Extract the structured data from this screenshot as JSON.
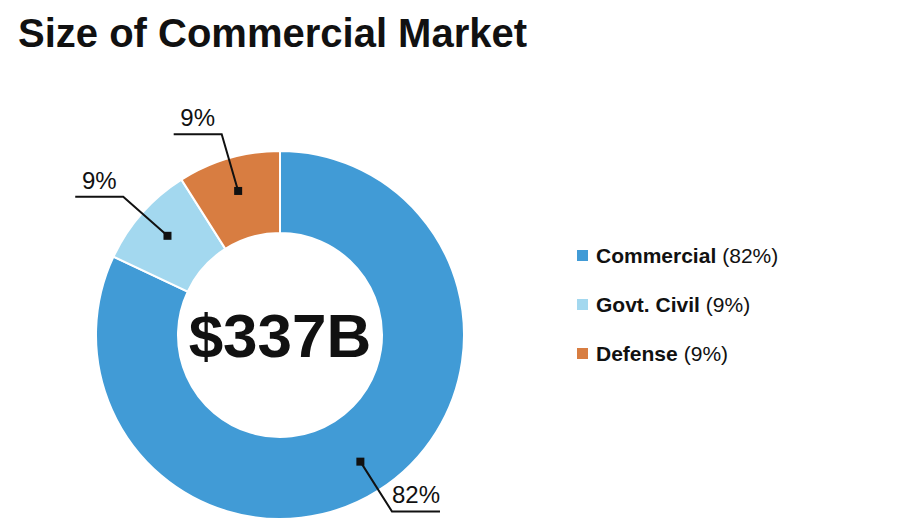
{
  "chart_data": {
    "type": "donut",
    "title": "Size of Commercial Market",
    "center_label": "$337B",
    "categories": [
      "Commercial",
      "Govt. Civil",
      "Defense"
    ],
    "values": [
      82,
      9,
      9
    ],
    "value_labels": [
      "82%",
      "9%",
      "9%"
    ],
    "legend_value_labels": [
      "(82%)",
      "(9%)",
      "(9%)"
    ],
    "colors": [
      "#419bd6",
      "#a3d8ef",
      "#d87d41"
    ],
    "data_labels": true,
    "legend": "right"
  }
}
